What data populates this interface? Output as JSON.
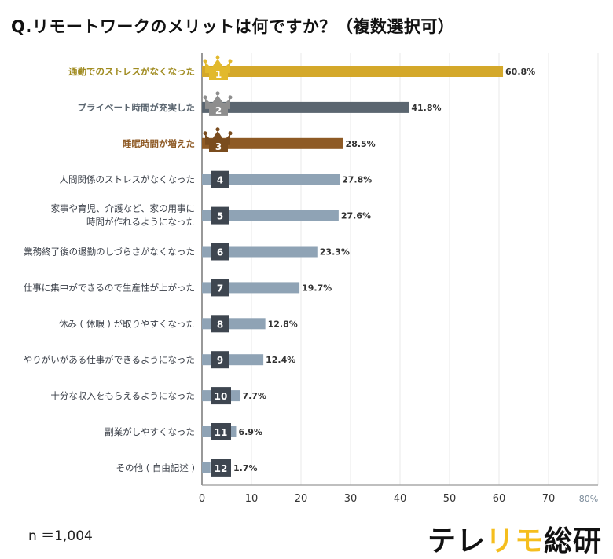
{
  "title": "Q.リモートワークのメリットは何ですか？（複数選択可）",
  "sample_size": "n ＝1,004",
  "logo": {
    "part1": "テレ",
    "part2": "リモ",
    "part3": "総研"
  },
  "colors": {
    "gold": "#D4A82A",
    "silver": "#5B6670",
    "bronze": "#8E5A25",
    "other_bar": "#8FA3B5",
    "badge": "#3E4650",
    "logo_accent": "#F5BE1E"
  },
  "chart_data": {
    "type": "bar",
    "orientation": "horizontal",
    "title": "Q.リモートワークのメリットは何ですか？（複数選択可）",
    "categories": [
      "通勤でのストレスがなくなった",
      "プライベート時間が充実した",
      "睡眠時間が増えた",
      "人間関係のストレスがなくなった",
      "家事や育児、介護など、家の用事に|時間が作れるようになった",
      "業務終了後の退勤のしづらさがなくなった",
      "仕事に集中ができるので生産性が上がった",
      "休み ( 休暇 ) が取りやすくなった",
      "やりがいがある仕事ができるようになった",
      "十分な収入をもらえるようになった",
      "副業がしやすくなった",
      "その他 ( 自由記述 )"
    ],
    "ranks": [
      "1",
      "2",
      "3",
      "4",
      "5",
      "6",
      "7",
      "8",
      "9",
      "10",
      "11",
      "12"
    ],
    "values": [
      60.8,
      41.8,
      28.5,
      27.8,
      27.6,
      23.3,
      19.7,
      12.8,
      12.4,
      7.7,
      6.9,
      1.7
    ],
    "value_labels": [
      "60.8%",
      "41.8%",
      "28.5%",
      "27.8%",
      "27.6%",
      "23.3%",
      "19.7%",
      "12.8%",
      "12.4%",
      "7.7%",
      "6.9%",
      "1.7%"
    ],
    "xlim": [
      0,
      80
    ],
    "x_ticks": [
      "0",
      "10",
      "20",
      "30",
      "40",
      "50",
      "60",
      "70",
      "80%"
    ],
    "grid": true,
    "unit": "%"
  }
}
